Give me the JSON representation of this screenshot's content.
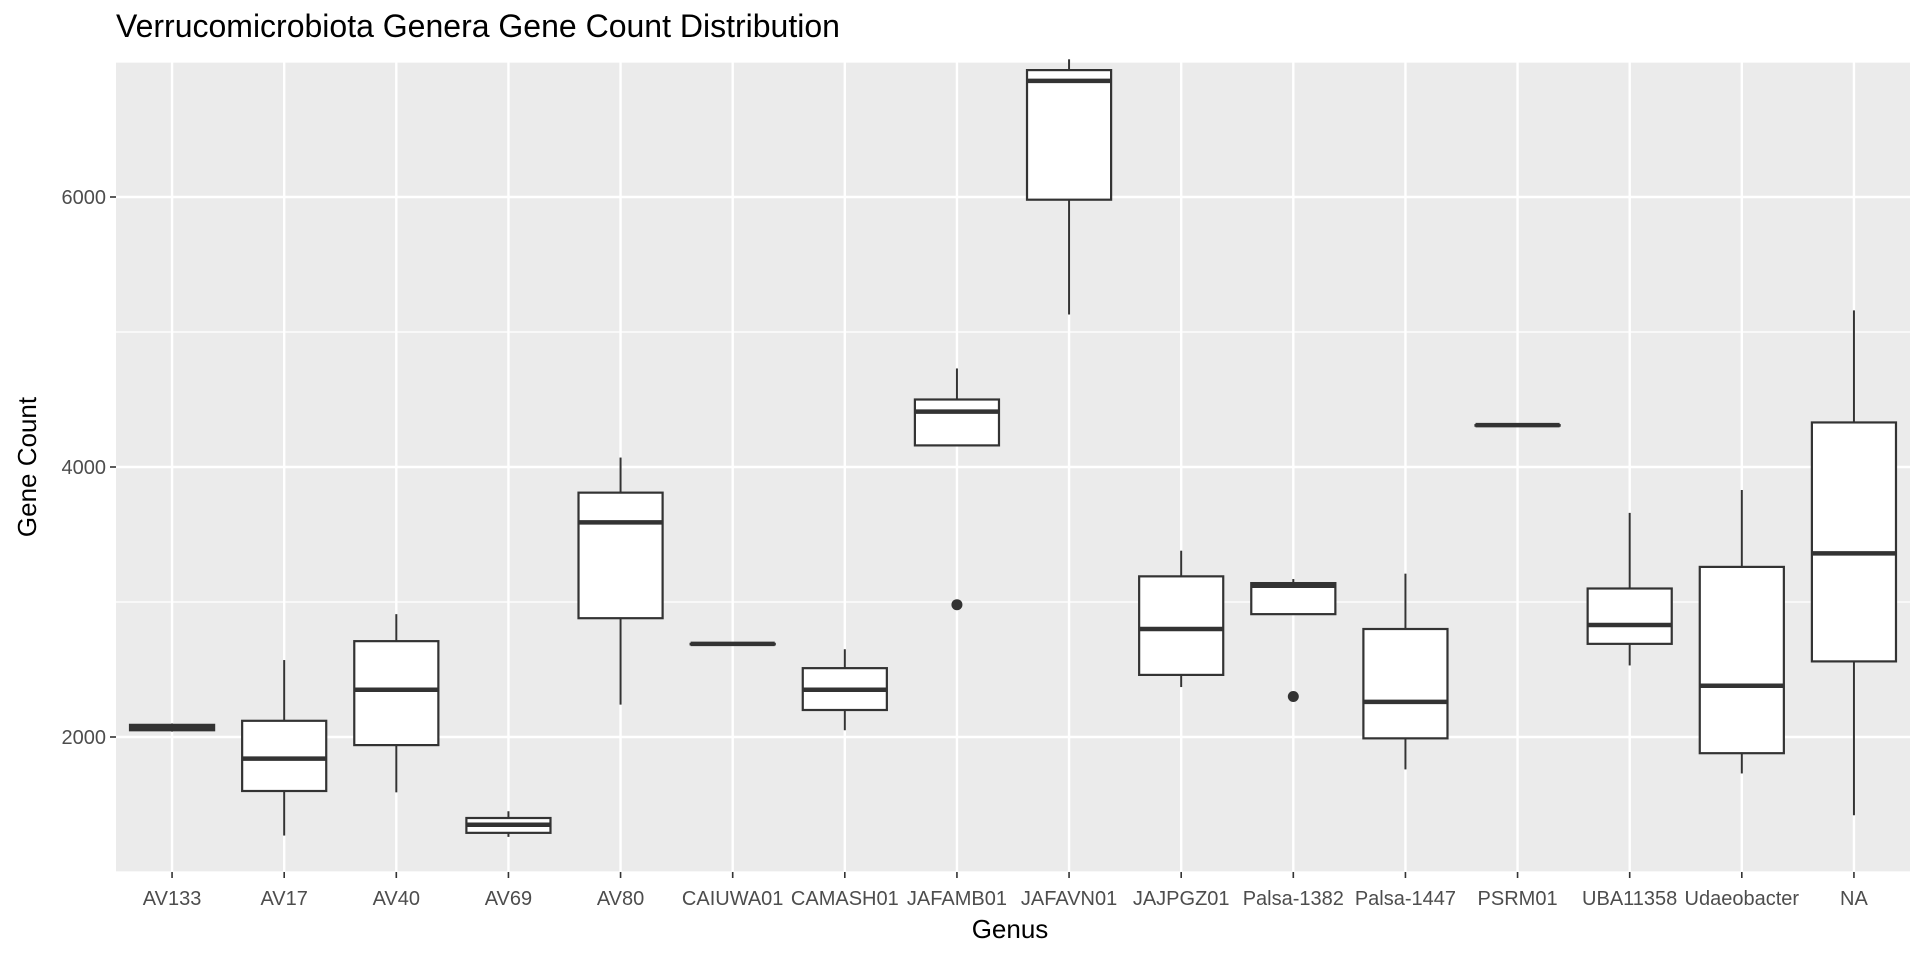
{
  "chart_data": {
    "type": "boxplot",
    "title": "Verrucomicrobiota Genera Gene Count Distribution",
    "xlabel": "Genus",
    "ylabel": "Gene Count",
    "ylim": [
      1000,
      7000
    ],
    "yticks": [
      2000,
      4000,
      6000
    ],
    "grid": true,
    "legend": "none",
    "colors": {
      "panel": "#ebebeb",
      "grid": "#ffffff",
      "box_fill": "#ffffff",
      "box_line": "#333333",
      "tick_text": "#4d4d4d"
    },
    "categories": [
      "AV133",
      "AV17",
      "AV40",
      "AV69",
      "AV80",
      "CAIUWA01",
      "CAMASH01",
      "JAFAMB01",
      "JAFAVN01",
      "JAJPGZ01",
      "Palsa-1382",
      "Palsa-1447",
      "PSRM01",
      "UBA11358",
      "Udaeobacter",
      "NA"
    ],
    "boxes": [
      {
        "genus": "AV133",
        "min": 2040,
        "q1": 2050,
        "median": 2070,
        "q3": 2090,
        "max": 2100,
        "outliers": []
      },
      {
        "genus": "AV17",
        "min": 1270,
        "q1": 1600,
        "median": 1840,
        "q3": 2120,
        "max": 2570,
        "outliers": []
      },
      {
        "genus": "AV40",
        "min": 1590,
        "q1": 1940,
        "median": 2350,
        "q3": 2710,
        "max": 2910,
        "outliers": []
      },
      {
        "genus": "AV69",
        "min": 1260,
        "q1": 1290,
        "median": 1350,
        "q3": 1400,
        "max": 1450,
        "outliers": []
      },
      {
        "genus": "AV80",
        "min": 2240,
        "q1": 2880,
        "median": 3590,
        "q3": 3810,
        "max": 4070,
        "outliers": []
      },
      {
        "genus": "CAIUWA01",
        "min": 2690,
        "q1": 2690,
        "median": 2690,
        "q3": 2690,
        "max": 2690,
        "outliers": []
      },
      {
        "genus": "CAMASH01",
        "min": 2050,
        "q1": 2200,
        "median": 2350,
        "q3": 2510,
        "max": 2650,
        "outliers": []
      },
      {
        "genus": "JAFAMB01",
        "min": 4160,
        "q1": 4160,
        "median": 4410,
        "q3": 4500,
        "max": 4730,
        "outliers": [
          2980
        ]
      },
      {
        "genus": "JAFAVN01",
        "min": 5130,
        "q1": 5980,
        "median": 6860,
        "q3": 6940,
        "max": 7020,
        "outliers": []
      },
      {
        "genus": "JAJPGZ01",
        "min": 2370,
        "q1": 2460,
        "median": 2800,
        "q3": 3190,
        "max": 3380,
        "outliers": []
      },
      {
        "genus": "Palsa-1382",
        "min": 2910,
        "q1": 2910,
        "median": 3120,
        "q3": 3140,
        "max": 3170,
        "outliers": [
          2300
        ]
      },
      {
        "genus": "Palsa-1447",
        "min": 1760,
        "q1": 1990,
        "median": 2260,
        "q3": 2800,
        "max": 3210,
        "outliers": []
      },
      {
        "genus": "PSRM01",
        "min": 4310,
        "q1": 4310,
        "median": 4310,
        "q3": 4310,
        "max": 4310,
        "outliers": []
      },
      {
        "genus": "UBA11358",
        "min": 2530,
        "q1": 2690,
        "median": 2830,
        "q3": 3100,
        "max": 3660,
        "outliers": []
      },
      {
        "genus": "Udaeobacter",
        "min": 1730,
        "q1": 1880,
        "median": 2380,
        "q3": 3260,
        "max": 3830,
        "outliers": []
      },
      {
        "genus": "NA",
        "min": 1420,
        "q1": 2560,
        "median": 3360,
        "q3": 4330,
        "max": 5160,
        "outliers": []
      }
    ]
  }
}
